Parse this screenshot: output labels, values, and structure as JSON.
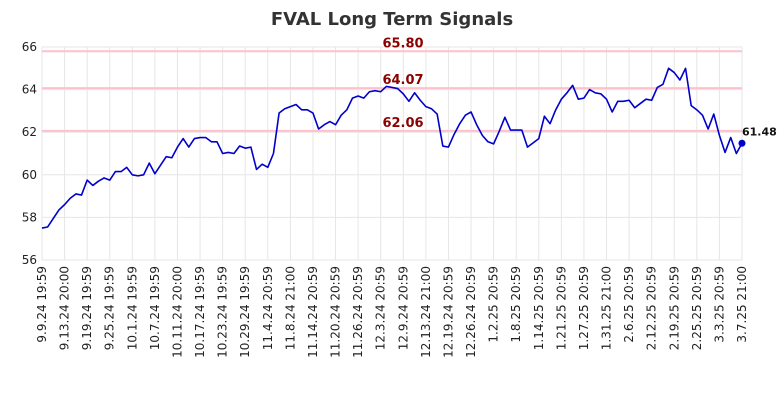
{
  "chart_data": {
    "type": "line",
    "title": "FVAL Long Term Signals",
    "xlabel": "",
    "ylabel": "",
    "ylim": [
      56,
      66
    ],
    "yticks": [
      56,
      58,
      60,
      62,
      64,
      66
    ],
    "grid": true,
    "line_color": "#0000cc",
    "level_color": "#ffc0cb",
    "level_label_color": "#8b0000",
    "x_tick_labels": [
      "9.9.24 19:59",
      "9.13.24 20:00",
      "9.19.24 19:59",
      "9.25.24 19:59",
      "10.1.24 19:59",
      "10.7.24 19:59",
      "10.11.24 20:00",
      "10.17.24 19:59",
      "10.23.24 19:59",
      "10.29.24 19:59",
      "11.4.24 20:59",
      "11.8.24 21:00",
      "11.14.24 20:59",
      "11.20.24 20:59",
      "11.26.24 20:59",
      "12.3.24 20:59",
      "12.9.24 20:59",
      "12.13.24 21:00",
      "12.19.24 20:59",
      "12.26.24 20:59",
      "1.2.25 20:59",
      "1.8.25 20:59",
      "1.14.25 20:59",
      "1.21.25 20:59",
      "1.27.25 20:59",
      "1.31.25 21:00",
      "2.6.25 20:59",
      "2.12.25 20:59",
      "2.19.25 20:59",
      "2.25.25 20:59",
      "3.3.25 20:59",
      "3.7.25 21:00"
    ],
    "levels": [
      {
        "value": 65.8,
        "label": "65.80"
      },
      {
        "value": 64.07,
        "label": "64.07"
      },
      {
        "value": 62.06,
        "label": "62.06"
      }
    ],
    "last_point_label": "61.48",
    "series": [
      {
        "values": [
          57.5,
          57.55,
          57.95,
          58.35,
          58.6,
          58.9,
          59.1,
          59.05,
          59.75,
          59.5,
          59.7,
          59.85,
          59.75,
          60.15,
          60.15,
          60.35,
          60.0,
          59.95,
          60.0,
          60.55,
          60.05,
          60.45,
          60.85,
          60.8,
          61.3,
          61.7,
          61.3,
          61.7,
          61.75,
          61.75,
          61.55,
          61.55,
          61.0,
          61.05,
          61.0,
          61.35,
          61.25,
          61.3,
          60.25,
          60.5,
          60.35,
          61.0,
          62.9,
          63.1,
          63.2,
          63.3,
          63.05,
          63.05,
          62.9,
          62.15,
          62.35,
          62.5,
          62.35,
          62.8,
          63.05,
          63.6,
          63.7,
          63.6,
          63.9,
          63.95,
          63.9,
          64.15,
          64.1,
          64.05,
          63.8,
          63.45,
          63.85,
          63.5,
          63.2,
          63.1,
          62.85,
          61.35,
          61.3,
          61.9,
          62.4,
          62.8,
          62.95,
          62.35,
          61.85,
          61.55,
          61.45,
          62.05,
          62.7,
          62.1,
          62.1,
          62.1,
          61.3,
          61.5,
          61.7,
          62.75,
          62.4,
          63.05,
          63.55,
          63.85,
          64.2,
          63.55,
          63.6,
          64.0,
          63.85,
          63.8,
          63.55,
          62.95,
          63.45,
          63.45,
          63.5,
          63.15,
          63.35,
          63.55,
          63.5,
          64.1,
          64.25,
          65.0,
          64.8,
          64.45,
          65.0,
          63.25,
          63.05,
          62.8,
          62.15,
          62.85,
          61.85,
          61.05,
          61.75,
          61.0,
          61.48
        ]
      }
    ]
  }
}
